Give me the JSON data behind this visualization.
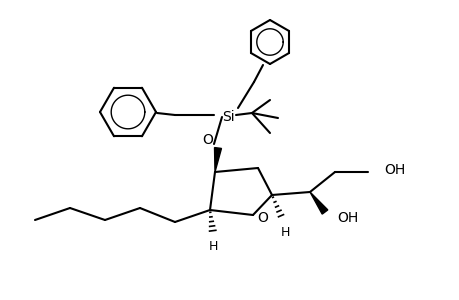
{
  "background": "#ffffff",
  "line_color": "#000000",
  "line_width": 1.5,
  "figsize": [
    4.6,
    3.0
  ],
  "dpi": 100,
  "xlim": [
    0,
    460
  ],
  "ylim": [
    0,
    300
  ]
}
